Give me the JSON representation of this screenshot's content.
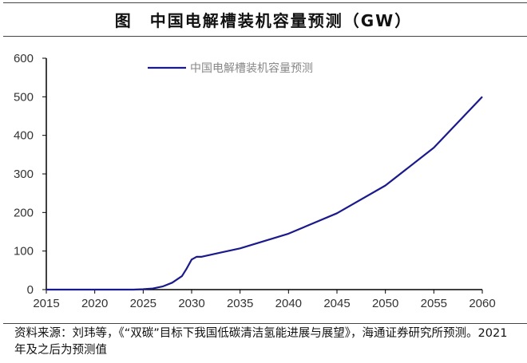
{
  "title": "图　中国电解槽装机容量预测（GW）",
  "source": "资料来源：刘玮等，《“双碳”目标下我国低碳清洁氢能进展与展望》，海通证券研究所预测。2021 年及之后为预测值",
  "chart_data": {
    "type": "line",
    "title": "图　中国电解槽装机容量预测（GW）",
    "xlim": [
      2015,
      2060
    ],
    "ylim": [
      0,
      600
    ],
    "xticks": [
      2015,
      2020,
      2025,
      2030,
      2035,
      2040,
      2045,
      2050,
      2055,
      2060
    ],
    "yticks": [
      0,
      100,
      200,
      300,
      400,
      500,
      600
    ],
    "grid": false,
    "legend_position": "top-center",
    "series": [
      {
        "name": "中国电解槽装机容量预测",
        "color": "#1a1a8c",
        "x": [
          2015,
          2020,
          2024,
          2025,
          2026,
          2027,
          2028,
          2029,
          2029.5,
          2030,
          2030.5,
          2031,
          2033,
          2035,
          2040,
          2045,
          2050,
          2055,
          2060
        ],
        "y": [
          0,
          0,
          0,
          1,
          3,
          8,
          18,
          35,
          55,
          78,
          85,
          85,
          96,
          107,
          145,
          198,
          270,
          368,
          500
        ]
      }
    ]
  }
}
